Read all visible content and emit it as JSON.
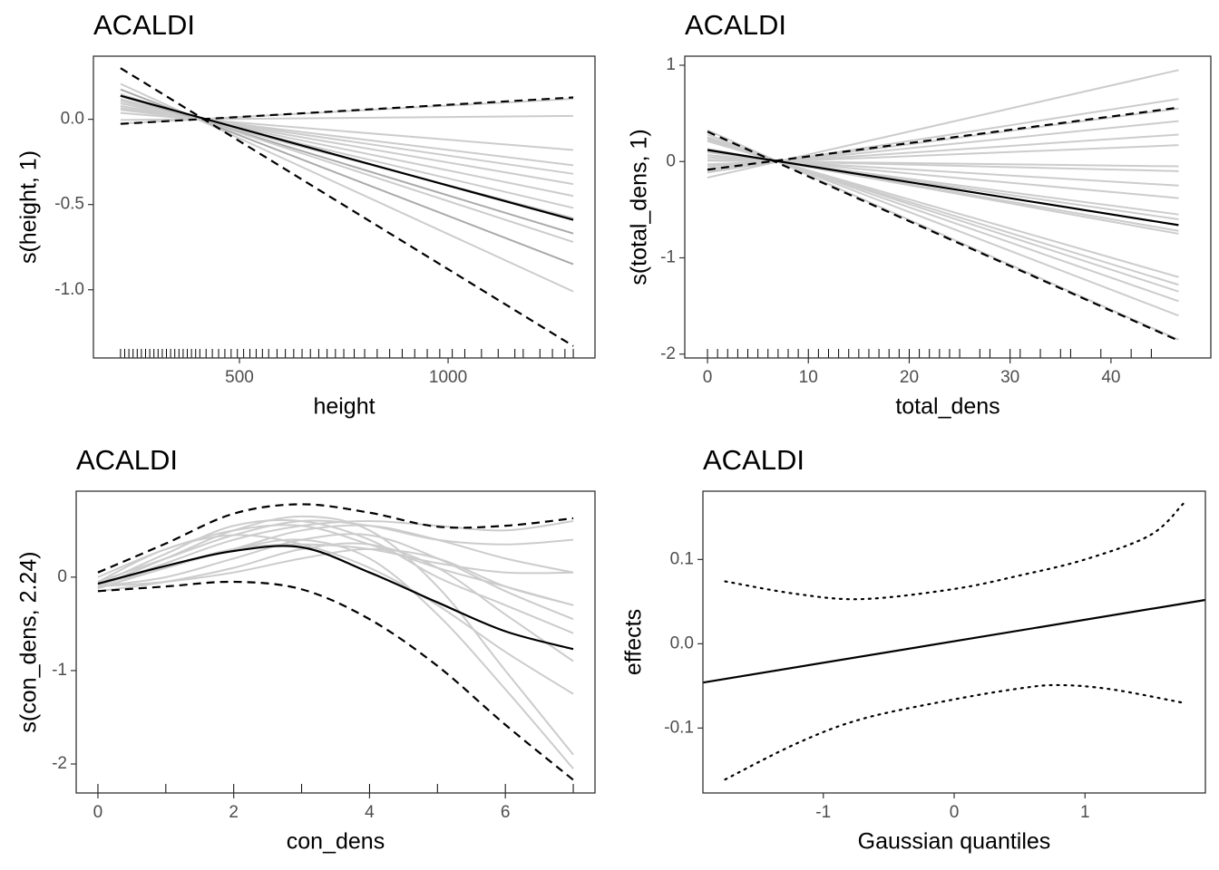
{
  "chart_data": [
    {
      "type": "line",
      "title": "ACALDI",
      "xlabel": "height",
      "ylabel": "s(height, 1)",
      "xlim": [
        150,
        1352
      ],
      "ylim": [
        -1.4,
        0.37
      ],
      "xticks": [
        500,
        1000
      ],
      "yticks": [
        {
          "value": 0,
          "label": "0.0"
        },
        -0.5,
        {
          "value": -1,
          "label": "-1.0"
        }
      ],
      "series": [
        {
          "x": [
            215,
            1300
          ],
          "values": [
            -0.025,
            0.12
          ],
          "color": "#cccccc",
          "dash": "solid"
        },
        {
          "x": [
            215,
            1300
          ],
          "values": [
            -0.004,
            0.02
          ],
          "color": "#cccccc",
          "dash": "solid"
        },
        {
          "x": [
            215,
            1300
          ],
          "values": [
            0.037,
            -0.18
          ],
          "color": "#cccccc",
          "dash": "solid"
        },
        {
          "x": [
            215,
            1300
          ],
          "values": [
            0.056,
            -0.27
          ],
          "color": "#cccccc",
          "dash": "solid"
        },
        {
          "x": [
            215,
            1300
          ],
          "values": [
            0.066,
            -0.32
          ],
          "color": "#cccccc",
          "dash": "solid"
        },
        {
          "x": [
            215,
            1300
          ],
          "values": [
            0.078,
            -0.38
          ],
          "color": "#cccccc",
          "dash": "solid"
        },
        {
          "x": [
            215,
            1300
          ],
          "values": [
            0.093,
            -0.45
          ],
          "color": "#cccccc",
          "dash": "solid"
        },
        {
          "x": [
            215,
            1300
          ],
          "values": [
            0.107,
            -0.52
          ],
          "color": "#cccccc",
          "dash": "solid"
        },
        {
          "x": [
            215,
            1300
          ],
          "values": [
            0.119,
            -0.58
          ],
          "color": "#cccccc",
          "dash": "solid"
        },
        {
          "x": [
            215,
            1300
          ],
          "values": [
            0.138,
            -0.67
          ],
          "color": "#aaaaaa",
          "dash": "solid"
        },
        {
          "x": [
            215,
            1300
          ],
          "values": [
            0.148,
            -0.72
          ],
          "color": "#cccccc",
          "dash": "solid"
        },
        {
          "x": [
            215,
            1300
          ],
          "values": [
            0.175,
            -0.85
          ],
          "color": "#aaaaaa",
          "dash": "solid"
        },
        {
          "x": [
            215,
            1300
          ],
          "values": [
            0.208,
            -1.01
          ],
          "color": "#cccccc",
          "dash": "solid"
        },
        {
          "x": [
            215,
            1300
          ],
          "values": [
            -0.027,
            0.128
          ],
          "color": "#000000",
          "dash": "dashed"
        },
        {
          "x": [
            215,
            1300
          ],
          "values": [
            0.3,
            -1.33
          ],
          "color": "#000000",
          "dash": "dashed"
        },
        {
          "x": [
            215,
            1300
          ],
          "values": [
            0.138,
            -0.59
          ],
          "color": "#000000",
          "dash": "solid"
        }
      ],
      "rug": [
        215,
        225,
        235,
        245,
        255,
        265,
        275,
        285,
        295,
        305,
        315,
        325,
        335,
        345,
        355,
        365,
        375,
        385,
        395,
        405,
        420,
        435,
        450,
        465,
        480,
        495,
        510,
        525,
        540,
        555,
        570,
        590,
        610,
        630,
        650,
        670,
        690,
        710,
        730,
        750,
        775,
        800,
        830,
        860,
        890,
        920,
        950,
        980,
        1010,
        1040,
        1080,
        1120,
        1160,
        1180,
        1220,
        1250,
        1280,
        1300
      ]
    },
    {
      "type": "line",
      "title": "ACALDI",
      "xlabel": "total_dens",
      "ylabel": "s(total_dens, 1)",
      "xlim": [
        -2.25,
        49.9
      ],
      "ylim": [
        -2.04,
        1.094
      ],
      "xticks": [
        0,
        10,
        20,
        30,
        40
      ],
      "yticks": [
        1,
        0,
        -1,
        -2
      ],
      "series": [
        {
          "x": [
            0,
            46.7
          ],
          "values": [
            -0.167,
            0.95
          ],
          "color": "#cccccc",
          "dash": "solid"
        },
        {
          "x": [
            0,
            46.7
          ],
          "values": [
            -0.114,
            0.65
          ],
          "color": "#cccccc",
          "dash": "solid"
        },
        {
          "x": [
            0,
            46.7
          ],
          "values": [
            -0.097,
            0.55
          ],
          "color": "#cccccc",
          "dash": "solid"
        },
        {
          "x": [
            0,
            46.7
          ],
          "values": [
            -0.074,
            0.42
          ],
          "color": "#cccccc",
          "dash": "solid"
        },
        {
          "x": [
            0,
            46.7
          ],
          "values": [
            -0.049,
            0.28
          ],
          "color": "#cccccc",
          "dash": "solid"
        },
        {
          "x": [
            0,
            46.7
          ],
          "values": [
            -0.03,
            0.17
          ],
          "color": "#cccccc",
          "dash": "solid"
        },
        {
          "x": [
            0,
            46.7
          ],
          "values": [
            0.009,
            -0.05
          ],
          "color": "#cccccc",
          "dash": "solid"
        },
        {
          "x": [
            0,
            46.7
          ],
          "values": [
            0.018,
            -0.1
          ],
          "color": "#cccccc",
          "dash": "solid"
        },
        {
          "x": [
            0,
            46.7
          ],
          "values": [
            0.044,
            -0.25
          ],
          "color": "#cccccc",
          "dash": "solid"
        },
        {
          "x": [
            0,
            46.7
          ],
          "values": [
            0.067,
            -0.38
          ],
          "color": "#cccccc",
          "dash": "solid"
        },
        {
          "x": [
            0,
            46.7
          ],
          "values": [
            0.097,
            -0.55
          ],
          "color": "#cccccc",
          "dash": "solid"
        },
        {
          "x": [
            0,
            46.7
          ],
          "values": [
            0.106,
            -0.6
          ],
          "color": "#cccccc",
          "dash": "solid"
        },
        {
          "x": [
            0,
            46.7
          ],
          "values": [
            0.127,
            -0.72
          ],
          "color": "#cccccc",
          "dash": "solid"
        },
        {
          "x": [
            0,
            46.7
          ],
          "values": [
            0.132,
            -0.75
          ],
          "color": "#cccccc",
          "dash": "solid"
        },
        {
          "x": [
            0,
            46.7
          ],
          "values": [
            0.211,
            -1.2
          ],
          "color": "#cccccc",
          "dash": "solid"
        },
        {
          "x": [
            0,
            46.7
          ],
          "values": [
            0.225,
            -1.28
          ],
          "color": "#cccccc",
          "dash": "solid"
        },
        {
          "x": [
            0,
            46.7
          ],
          "values": [
            0.238,
            -1.35
          ],
          "color": "#cccccc",
          "dash": "solid"
        },
        {
          "x": [
            0,
            46.7
          ],
          "values": [
            0.255,
            -1.45
          ],
          "color": "#cccccc",
          "dash": "solid"
        },
        {
          "x": [
            0,
            46.7
          ],
          "values": [
            0.282,
            -1.6
          ],
          "color": "#cccccc",
          "dash": "solid"
        },
        {
          "x": [
            0,
            46.7
          ],
          "values": [
            0.326,
            -1.85
          ],
          "color": "#cccccc",
          "dash": "solid"
        },
        {
          "x": [
            0,
            46.7
          ],
          "values": [
            -0.085,
            0.56
          ],
          "color": "#000000",
          "dash": "dashed"
        },
        {
          "x": [
            0,
            46.7
          ],
          "values": [
            0.31,
            -1.86
          ],
          "color": "#000000",
          "dash": "dashed"
        },
        {
          "x": [
            0,
            46.7
          ],
          "values": [
            0.12,
            -0.66
          ],
          "color": "#000000",
          "dash": "solid"
        }
      ],
      "rug": [
        0,
        1,
        2,
        3,
        4,
        5,
        6,
        7,
        8,
        9,
        10,
        11,
        12,
        13,
        14,
        15,
        16,
        17,
        18,
        19,
        20,
        21,
        22,
        23,
        24,
        25,
        27,
        28,
        30,
        31,
        33,
        35,
        36,
        39,
        42,
        44
      ]
    },
    {
      "type": "line",
      "title": "ACALDI",
      "xlabel": "con_dens",
      "ylabel": "s(con_dens, 2.24)",
      "xlim": [
        -0.32,
        7.32
      ],
      "ylim": [
        -2.31,
        0.92
      ],
      "xticks": [
        0,
        2,
        4,
        6
      ],
      "yticks": [
        0,
        -1,
        -2
      ],
      "series": [
        {
          "x": [
            0,
            1,
            2,
            3,
            4,
            5,
            6,
            7
          ],
          "values": [
            -0.1,
            0.15,
            0.4,
            0.55,
            0.6,
            0.55,
            0.5,
            0.6
          ],
          "color": "#cccccc",
          "dash": "solid"
        },
        {
          "x": [
            0,
            1,
            2,
            3,
            4,
            5,
            6,
            7
          ],
          "values": [
            -0.05,
            0.2,
            0.45,
            0.6,
            0.55,
            0.4,
            0.35,
            0.4
          ],
          "color": "#cccccc",
          "dash": "solid"
        },
        {
          "x": [
            0,
            1,
            2,
            3,
            4,
            5,
            6,
            7
          ],
          "values": [
            -0.12,
            0.1,
            0.3,
            0.5,
            0.55,
            0.4,
            0.2,
            0.05
          ],
          "color": "#cccccc",
          "dash": "solid"
        },
        {
          "x": [
            0,
            1,
            2,
            3,
            4,
            5,
            6,
            7
          ],
          "values": [
            0,
            0.3,
            0.5,
            0.55,
            0.35,
            0.1,
            -0.1,
            -0.3
          ],
          "color": "#cccccc",
          "dash": "solid"
        },
        {
          "x": [
            0,
            1,
            2,
            3,
            4,
            5,
            6,
            7
          ],
          "values": [
            -0.1,
            0.0,
            0.2,
            0.4,
            0.45,
            0.2,
            -0.15,
            -0.45
          ],
          "color": "#cccccc",
          "dash": "solid"
        },
        {
          "x": [
            0,
            1,
            2,
            3,
            4,
            5,
            6,
            7
          ],
          "values": [
            -0.08,
            0.25,
            0.55,
            0.6,
            0.4,
            0.0,
            -0.3,
            -0.6
          ],
          "color": "#cccccc",
          "dash": "solid"
        },
        {
          "x": [
            0,
            1,
            2,
            3,
            4,
            5,
            6,
            7
          ],
          "values": [
            -0.15,
            -0.05,
            0.1,
            0.3,
            0.35,
            0.1,
            -0.4,
            -0.9
          ],
          "color": "#cccccc",
          "dash": "solid"
        },
        {
          "x": [
            0,
            1,
            2,
            3,
            4,
            5,
            6,
            7
          ],
          "values": [
            -0.05,
            0.3,
            0.45,
            0.35,
            0.1,
            -0.3,
            -0.8,
            -1.25
          ],
          "color": "#cccccc",
          "dash": "solid"
        },
        {
          "x": [
            0,
            1,
            2,
            3,
            4,
            5,
            6,
            7
          ],
          "values": [
            -0.1,
            0.2,
            0.5,
            0.65,
            0.5,
            -0.1,
            -1.0,
            -1.9
          ],
          "color": "#cccccc",
          "dash": "solid"
        },
        {
          "x": [
            0,
            1,
            2,
            3,
            4,
            5,
            6,
            7
          ],
          "values": [
            -0.08,
            0.1,
            0.3,
            0.4,
            0.2,
            -0.4,
            -1.2,
            -2.05
          ],
          "color": "#cccccc",
          "dash": "solid"
        },
        {
          "x": [
            0,
            1,
            2,
            3,
            4,
            5,
            6,
            7
          ],
          "values": [
            -0.12,
            0.1,
            0.3,
            0.35,
            0.3,
            0.15,
            0.05,
            0.05
          ],
          "color": "#cccccc",
          "dash": "solid"
        },
        {
          "x": [
            0,
            1,
            2,
            3,
            4,
            5,
            6,
            7
          ],
          "values": [
            -0.1,
            -0.05,
            0.05,
            0.2,
            0.3,
            0.2,
            -0.1,
            -0.3
          ],
          "color": "#cccccc",
          "dash": "solid"
        },
        {
          "x": [
            0,
            1,
            2,
            3,
            4,
            5,
            6,
            7
          ],
          "values": [
            0.05,
            0.36,
            0.68,
            0.78,
            0.69,
            0.54,
            0.55,
            0.63
          ],
          "color": "#000000",
          "dash": "dashed"
        },
        {
          "x": [
            0,
            1,
            2,
            3,
            4,
            5,
            6,
            7
          ],
          "values": [
            -0.15,
            -0.1,
            -0.05,
            -0.13,
            -0.45,
            -0.95,
            -1.58,
            -2.17
          ],
          "color": "#000000",
          "dash": "dashed"
        },
        {
          "x": [
            0,
            1,
            2,
            3,
            4,
            5,
            6,
            7
          ],
          "values": [
            -0.07,
            0.12,
            0.28,
            0.32,
            0.05,
            -0.27,
            -0.58,
            -0.77
          ],
          "color": "#000000",
          "dash": "solid"
        }
      ],
      "rug": [
        0,
        1,
        2,
        3,
        4,
        5,
        6,
        7
      ]
    },
    {
      "type": "line",
      "title": "ACALDI",
      "xlabel": "Gaussian quantiles",
      "ylabel": "effects",
      "xlim": [
        -1.92,
        1.92
      ],
      "ylim": [
        -0.177,
        0.181
      ],
      "xticks": [
        -1,
        0,
        1
      ],
      "yticks": [
        0.1,
        {
          "value": 0,
          "label": "0.0"
        },
        -0.1
      ],
      "series": [
        {
          "x": [
            -1.75,
            -1.2,
            -0.7,
            0,
            0.5,
            1.0,
            1.5,
            1.75
          ],
          "values": [
            0.074,
            0.059,
            0.053,
            0.065,
            0.081,
            0.1,
            0.129,
            0.166
          ],
          "color": "#000000",
          "dash": "dotted"
        },
        {
          "x": [
            -1.75,
            -1.2,
            -0.7,
            0,
            0.5,
            0.8,
            1.2,
            1.75
          ],
          "values": [
            -0.161,
            -0.118,
            -0.089,
            -0.066,
            -0.053,
            -0.049,
            -0.054,
            -0.07
          ],
          "color": "#000000",
          "dash": "dotted"
        },
        {
          "x": [
            -1.92,
            1.92
          ],
          "values": [
            -0.046,
            0.052
          ],
          "color": "#000000",
          "dash": "solid"
        }
      ]
    }
  ]
}
